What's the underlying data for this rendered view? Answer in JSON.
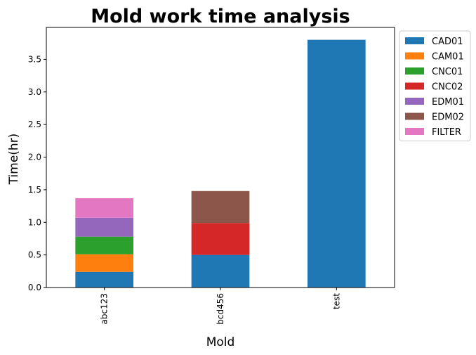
{
  "chart_data": {
    "type": "bar",
    "stacked": true,
    "title": "Mold work time analysis",
    "xlabel": "Mold",
    "ylabel": "Time(hr)",
    "categories": [
      "abc123",
      "bcd456",
      "test"
    ],
    "ylim": [
      0,
      3.99
    ],
    "yticks": [
      "0.0",
      "0.5",
      "1.0",
      "1.5",
      "2.0",
      "2.5",
      "3.0",
      "3.5"
    ],
    "legend_position": "upper-left-outside-right",
    "grid": false,
    "series": [
      {
        "name": "CAD01",
        "color": "#1f77b4",
        "values": [
          0.24,
          0.5,
          3.8
        ]
      },
      {
        "name": "CAM01",
        "color": "#ff7f0e",
        "values": [
          0.27,
          0,
          0
        ]
      },
      {
        "name": "CNC01",
        "color": "#2ca02c",
        "values": [
          0.27,
          0,
          0
        ]
      },
      {
        "name": "CNC02",
        "color": "#d62728",
        "values": [
          0,
          0.49,
          0
        ]
      },
      {
        "name": "EDM01",
        "color": "#9467bd",
        "values": [
          0.29,
          0,
          0
        ]
      },
      {
        "name": "EDM02",
        "color": "#8c564b",
        "values": [
          0,
          0.49,
          0
        ]
      },
      {
        "name": "FILTER",
        "color": "#e377c2",
        "values": [
          0.3,
          0,
          0
        ]
      }
    ]
  }
}
